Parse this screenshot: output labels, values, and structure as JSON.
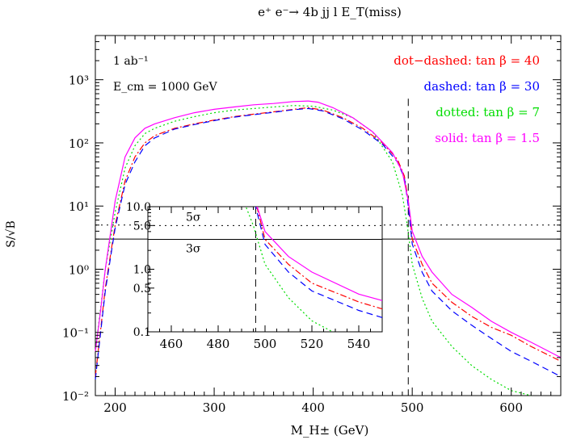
{
  "chart_data": {
    "type": "line",
    "title": "e⁺ e⁻→  4b jj l E_T(miss)",
    "xlabel": "M_H± (GeV)",
    "ylabel": "S/√B",
    "xlim": [
      180,
      650
    ],
    "ylim": [
      0.01,
      5000
    ],
    "yscale": "log",
    "xticks": [
      "200",
      "300",
      "400",
      "500",
      "600"
    ],
    "yticks": [
      "10⁻²",
      "10⁻¹",
      "10⁰",
      "10¹",
      "10²",
      "10³"
    ],
    "annotations": {
      "luminosity": "1 ab⁻¹",
      "energy": "E_cm = 1000 GeV"
    },
    "legend_position": "top-right",
    "series": [
      {
        "name": "dot−dashed: tan β = 40",
        "color": "#ff0000",
        "dash": "8 3 2 3",
        "x": [
          180,
          190,
          200,
          210,
          220,
          230,
          240,
          260,
          280,
          300,
          320,
          340,
          360,
          380,
          395,
          410,
          430,
          450,
          470,
          485,
          492,
          496,
          500,
          510,
          520,
          540,
          560,
          580,
          600,
          620,
          650
        ],
        "y": [
          0.02,
          0.5,
          5,
          25,
          60,
          100,
          130,
          170,
          200,
          230,
          260,
          285,
          310,
          340,
          360,
          330,
          250,
          170,
          100,
          55,
          30,
          12,
          3,
          1.2,
          0.6,
          0.3,
          0.18,
          0.12,
          0.09,
          0.06,
          0.035
        ]
      },
      {
        "name": "dashed: tan β = 30",
        "color": "#0000ff",
        "dash": "8 5",
        "x": [
          180,
          190,
          200,
          210,
          220,
          230,
          240,
          260,
          280,
          300,
          320,
          340,
          360,
          380,
          395,
          410,
          430,
          450,
          470,
          485,
          492,
          496,
          500,
          510,
          520,
          540,
          560,
          580,
          600,
          620,
          650
        ],
        "y": [
          0.018,
          0.45,
          4.5,
          22,
          50,
          90,
          120,
          165,
          195,
          225,
          255,
          280,
          305,
          335,
          350,
          320,
          240,
          160,
          95,
          50,
          28,
          10,
          2.5,
          0.9,
          0.45,
          0.22,
          0.13,
          0.08,
          0.05,
          0.035,
          0.02
        ]
      },
      {
        "name": "dotted: tan β = 7",
        "color": "#00dd00",
        "dash": "2 3",
        "x": [
          180,
          190,
          200,
          210,
          220,
          230,
          240,
          260,
          280,
          300,
          320,
          340,
          360,
          380,
          400,
          420,
          440,
          460,
          480,
          490,
          495,
          500,
          510,
          520,
          540,
          560,
          580,
          600,
          620
        ],
        "y": [
          0.05,
          1,
          8,
          40,
          90,
          140,
          170,
          220,
          260,
          300,
          330,
          350,
          370,
          390,
          380,
          330,
          250,
          150,
          50,
          15,
          5,
          1.2,
          0.35,
          0.15,
          0.06,
          0.03,
          0.018,
          0.012,
          0.01
        ]
      },
      {
        "name": "solid: tan β = 1.5",
        "color": "#ff00ff",
        "dash": "",
        "x": [
          180,
          185,
          190,
          200,
          210,
          220,
          230,
          240,
          260,
          280,
          300,
          320,
          340,
          360,
          380,
          395,
          405,
          420,
          440,
          460,
          480,
          490,
          496,
          500,
          510,
          520,
          540,
          560,
          580,
          600,
          620,
          650
        ],
        "y": [
          0.05,
          0.2,
          1,
          12,
          60,
          120,
          170,
          200,
          250,
          300,
          340,
          370,
          400,
          420,
          450,
          460,
          440,
          360,
          250,
          150,
          70,
          35,
          12,
          4,
          1.6,
          0.9,
          0.4,
          0.25,
          0.15,
          0.1,
          0.07,
          0.04
        ]
      }
    ],
    "reference_lines": [
      {
        "label": "5σ",
        "value": 5,
        "style": "dotted"
      },
      {
        "label": "3σ",
        "value": 3,
        "style": "solid"
      },
      {
        "label": "",
        "value_x": 496,
        "style": "dashed-vertical"
      }
    ],
    "inset": {
      "xlim": [
        450,
        550
      ],
      "ylim": [
        0.1,
        10
      ],
      "xticks": [
        "460",
        "480",
        "500",
        "520",
        "540"
      ],
      "yticks": [
        "0.1",
        "0.5",
        "1.0",
        "5.0",
        "10.0"
      ],
      "sigma5_label": "5σ",
      "sigma3_label": "3σ"
    }
  }
}
